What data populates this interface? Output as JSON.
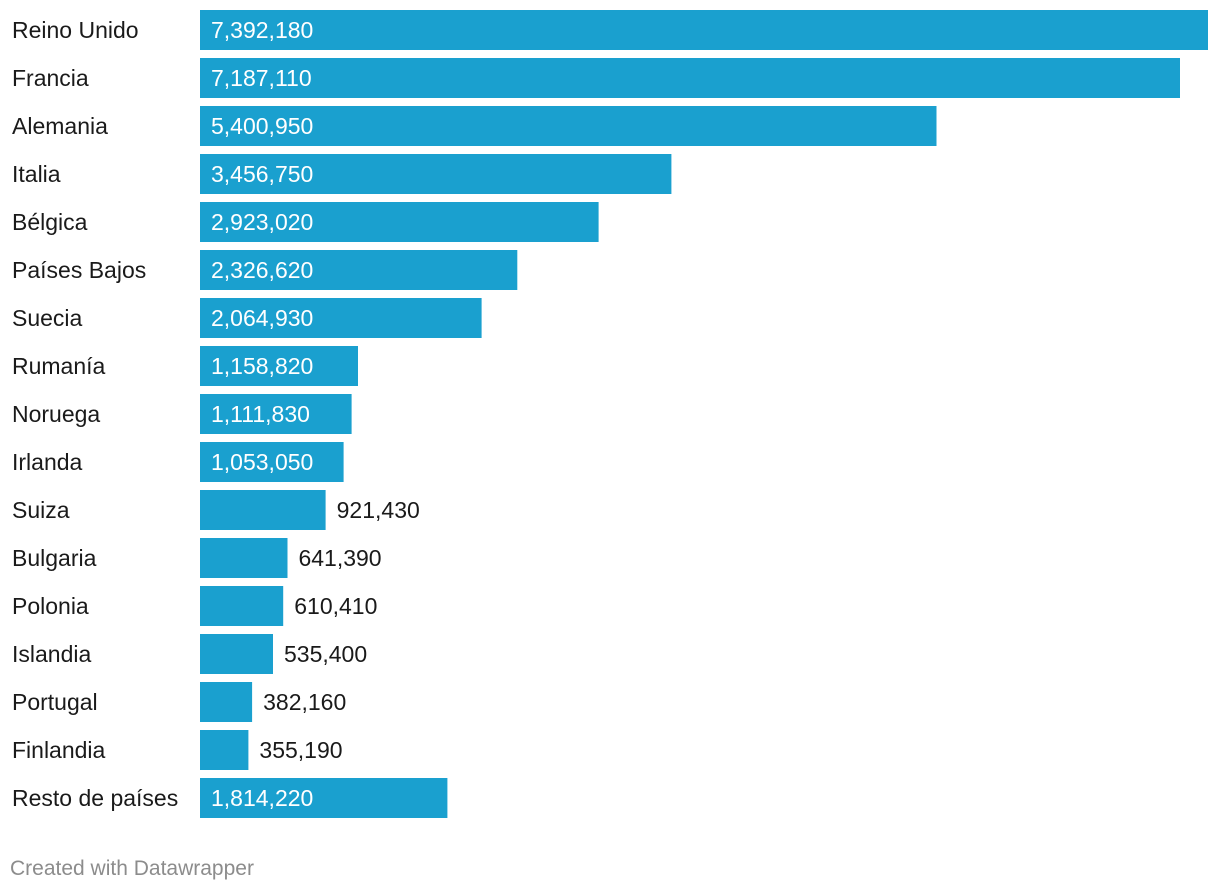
{
  "chart_data": {
    "type": "bar",
    "orientation": "horizontal",
    "title": "",
    "xlabel": "",
    "ylabel": "",
    "bar_color": "#1aa0cf",
    "categories": [
      "Reino Unido",
      "Francia",
      "Alemania",
      "Italia",
      "Bélgica",
      "Países Bajos",
      "Suecia",
      "Rumanía",
      "Noruega",
      "Irlanda",
      "Suiza",
      "Bulgaria",
      "Polonia",
      "Islandia",
      "Portugal",
      "Finlandia",
      "Resto de países"
    ],
    "values": [
      7392180,
      7187110,
      5400950,
      3456750,
      2923020,
      2326620,
      2064930,
      1158820,
      1111830,
      1053050,
      921430,
      641390,
      610410,
      535400,
      382160,
      355190,
      1814220
    ],
    "value_labels": [
      "7,392,180",
      "7,187,110",
      "5,400,950",
      "3,456,750",
      "2,923,020",
      "2,326,620",
      "2,064,930",
      "1,158,820",
      "1,111,830",
      "1,053,050",
      "921,430",
      "641,390",
      "610,410",
      "535,400",
      "382,160",
      "355,190",
      "1,814,220"
    ],
    "xlim": [
      0,
      7392180
    ]
  },
  "footer": {
    "credit": "Created with Datawrapper"
  }
}
